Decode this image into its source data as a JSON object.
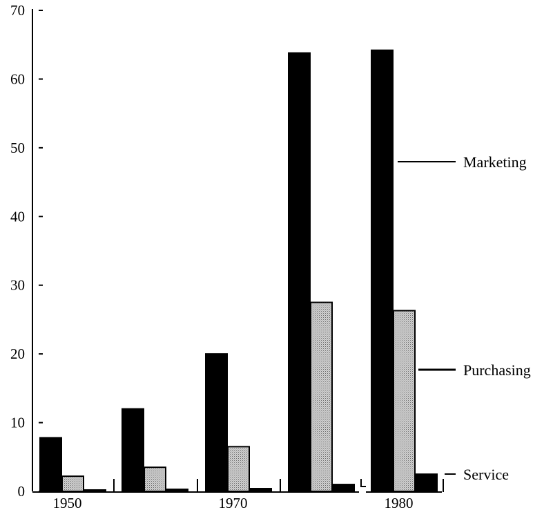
{
  "chart_data": {
    "type": "bar",
    "title": "",
    "xlabel": "",
    "ylabel": "",
    "ylim": [
      0,
      70
    ],
    "yticks": [
      0,
      10,
      20,
      30,
      40,
      50,
      60,
      70
    ],
    "ytick_labels": [
      "0",
      "10",
      "20",
      "30",
      "40",
      "50",
      "60",
      "70"
    ],
    "groups": 5,
    "category_labels": [
      {
        "group": 0,
        "text": "1950"
      },
      {
        "group": 2,
        "text": "1970"
      },
      {
        "group": 4,
        "text": "1980"
      }
    ],
    "series": [
      {
        "name": "Marketing",
        "color": "#000000",
        "fill": "solid",
        "values": [
          7.8,
          12,
          20,
          63.8,
          64.2
        ]
      },
      {
        "name": "Purchasing",
        "color": "#c8c8c8",
        "fill": "stippled",
        "values": [
          2.2,
          3.5,
          6.5,
          27.5,
          26.3
        ]
      },
      {
        "name": "Service",
        "color": "#000000",
        "fill": "solid",
        "values": [
          0.1,
          0.3,
          0.4,
          1.0,
          2.5
        ]
      }
    ],
    "grid": false,
    "legend": "right"
  }
}
